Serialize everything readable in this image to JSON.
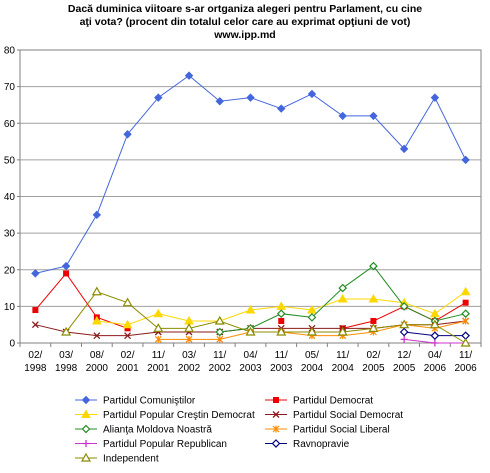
{
  "chart_data": {
    "type": "line",
    "title_lines": [
      "Dacă duminica viitoare s-ar ortganiza alegeri pentru Parlament, cu cine",
      "aţi vota? (procent din totalul celor care au exprimat opţiuni de vot)",
      "www.ipp.md"
    ],
    "ylim": [
      0,
      80
    ],
    "yticks": [
      "0",
      "10",
      "20",
      "30",
      "40",
      "50",
      "60",
      "70",
      "80"
    ],
    "grid": true,
    "legend_position": "bottom",
    "categories": [
      {
        "top": "02/",
        "bottom": "1998"
      },
      {
        "top": "03/",
        "bottom": "1998"
      },
      {
        "top": "08/",
        "bottom": "2000"
      },
      {
        "top": "02/",
        "bottom": "2001"
      },
      {
        "top": "11/",
        "bottom": "2001"
      },
      {
        "top": "03/",
        "bottom": "2002"
      },
      {
        "top": "11/",
        "bottom": "2002"
      },
      {
        "top": "04/",
        "bottom": "2003"
      },
      {
        "top": "11/",
        "bottom": "2003"
      },
      {
        "top": "05/",
        "bottom": "2004"
      },
      {
        "top": "11/",
        "bottom": "2004"
      },
      {
        "top": "02/",
        "bottom": "2005"
      },
      {
        "top": "12/",
        "bottom": "2005"
      },
      {
        "top": "04/",
        "bottom": "2006"
      },
      {
        "top": "11/",
        "bottom": "2006"
      }
    ],
    "series": [
      {
        "name": "Partidul Comuniştilor",
        "color": "#4466dd",
        "marker": "diamond",
        "values": [
          19,
          21,
          35,
          57,
          67,
          73,
          66,
          67,
          64,
          68,
          62,
          62,
          53,
          67,
          50
        ]
      },
      {
        "name": "Partidul Democrat",
        "color": "#ee0000",
        "marker": "square",
        "values": [
          9,
          19,
          7,
          4,
          null,
          null,
          null,
          null,
          6,
          null,
          4,
          6,
          10,
          6,
          11
        ]
      },
      {
        "name": "Partidul Popular Creştin Democrat",
        "color": "#ffd700",
        "marker": "triangle",
        "values": [
          null,
          null,
          6,
          5,
          8,
          6,
          6,
          9,
          10,
          9,
          12,
          12,
          11,
          8,
          14
        ]
      },
      {
        "name": "Partidul Social Democrat",
        "color": "#8b1a1a",
        "marker": "x",
        "values": [
          5,
          3,
          2,
          2,
          3,
          3,
          3,
          4,
          4,
          4,
          4,
          4,
          5,
          5,
          6
        ]
      },
      {
        "name": "Alianţa Moldova Noastră",
        "color": "#228b22",
        "marker": "diamond-open",
        "values": [
          null,
          null,
          null,
          null,
          null,
          null,
          3,
          4,
          8,
          7,
          15,
          21,
          10,
          6,
          8
        ]
      },
      {
        "name": "Partidul Social Liberal",
        "color": "#ff8c00",
        "marker": "asterisk",
        "values": [
          null,
          null,
          null,
          null,
          1,
          1,
          1,
          3,
          3,
          2,
          2,
          3,
          5,
          4,
          6
        ]
      },
      {
        "name": "Partidul Popular Republican",
        "color": "#cc33cc",
        "marker": "plus",
        "values": [
          null,
          null,
          null,
          null,
          null,
          null,
          null,
          null,
          null,
          null,
          null,
          null,
          1,
          0,
          0
        ]
      },
      {
        "name": "Ravnopravie",
        "color": "#000080",
        "marker": "diamond-open",
        "values": [
          null,
          null,
          null,
          null,
          null,
          null,
          null,
          null,
          null,
          null,
          null,
          null,
          3,
          2,
          2
        ]
      },
      {
        "name": "Independent",
        "color": "#8b8b00",
        "marker": "triangle-open",
        "values": [
          null,
          3,
          14,
          11,
          4,
          4,
          6,
          3,
          3,
          3,
          3,
          4,
          5,
          5,
          0
        ]
      }
    ]
  }
}
